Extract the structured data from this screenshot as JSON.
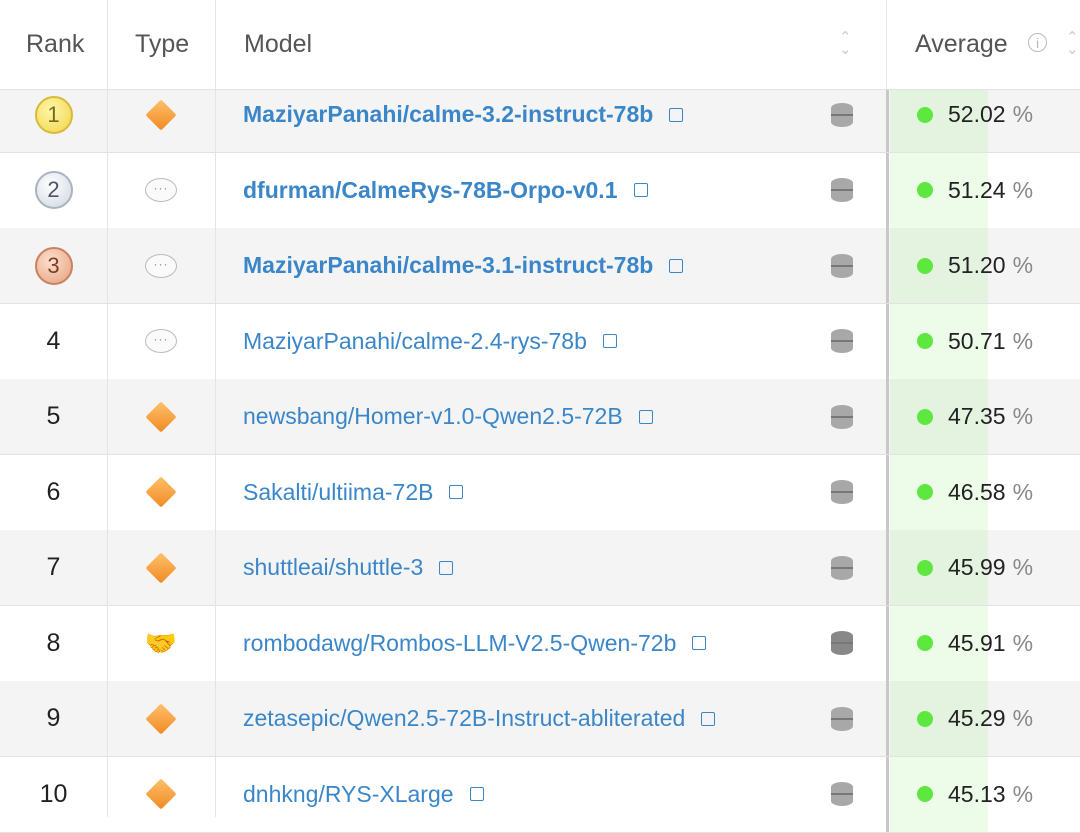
{
  "header": {
    "rank": "Rank",
    "type": "Type",
    "model": "Model",
    "average": "Average",
    "info_icon": "info-icon",
    "sort_icon": "sort-icon"
  },
  "colors": {
    "link": "#3a86c8",
    "score_dot": "#5ee83f"
  },
  "rows": [
    {
      "rank": "1",
      "medal": "gold",
      "type": "diamond",
      "model": "MaziyarPanahi/calme-3.2-instruct-78b",
      "bold": true,
      "avg": "52.02",
      "unit": "%"
    },
    {
      "rank": "2",
      "medal": "silver",
      "type": "chat",
      "model": "dfurman/CalmeRys-78B-Orpo-v0.1",
      "bold": true,
      "avg": "51.24",
      "unit": "%"
    },
    {
      "rank": "3",
      "medal": "bronze",
      "type": "chat",
      "model": "MaziyarPanahi/calme-3.1-instruct-78b",
      "bold": true,
      "avg": "51.20",
      "unit": "%"
    },
    {
      "rank": "4",
      "medal": "",
      "type": "chat",
      "model": "MaziyarPanahi/calme-2.4-rys-78b",
      "bold": false,
      "avg": "50.71",
      "unit": "%"
    },
    {
      "rank": "5",
      "medal": "",
      "type": "diamond",
      "model": "newsbang/Homer-v1.0-Qwen2.5-72B",
      "bold": false,
      "avg": "47.35",
      "unit": "%"
    },
    {
      "rank": "6",
      "medal": "",
      "type": "diamond",
      "model": "Sakalti/ultiima-72B",
      "bold": false,
      "avg": "46.58",
      "unit": "%"
    },
    {
      "rank": "7",
      "medal": "",
      "type": "diamond",
      "model": "shuttleai/shuttle-3",
      "bold": false,
      "avg": "45.99",
      "unit": "%"
    },
    {
      "rank": "8",
      "medal": "",
      "type": "merge",
      "model": "rombodawg/Rombos-LLM-V2.5-Qwen-72b",
      "bold": false,
      "avg": "45.91",
      "unit": "%"
    },
    {
      "rank": "9",
      "medal": "",
      "type": "diamond",
      "model": "zetasepic/Qwen2.5-72B-Instruct-abliterated",
      "bold": false,
      "avg": "45.29",
      "unit": "%"
    },
    {
      "rank": "10",
      "medal": "",
      "type": "diamond",
      "model": "dnhkng/RYS-XLarge",
      "bold": false,
      "avg": "45.13",
      "unit": "%"
    }
  ]
}
